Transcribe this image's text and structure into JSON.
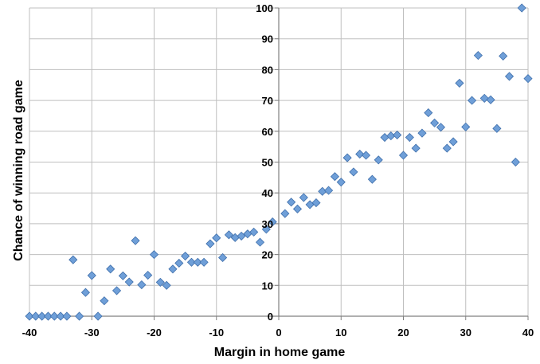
{
  "chart_data": {
    "type": "scatter",
    "title": "",
    "xlabel": "Margin in home game",
    "ylabel": "Chance of winning road game",
    "xlim": [
      -40,
      40
    ],
    "ylim": [
      0,
      100
    ],
    "xticks": [
      -40,
      -30,
      -20,
      -10,
      0,
      10,
      20,
      30,
      40
    ],
    "yticks": [
      0,
      10,
      20,
      30,
      40,
      50,
      60,
      70,
      80,
      90,
      100
    ],
    "grid": true,
    "y_axis_position": "x=0",
    "marker": "diamond",
    "colors": {
      "marker_fill": "#6f9fd8",
      "marker_stroke": "#3f6fab",
      "grid": "#bfbfbf",
      "axis": "#808080"
    },
    "series": [
      {
        "points": [
          [
            -40,
            0
          ],
          [
            -39,
            0
          ],
          [
            -38,
            0
          ],
          [
            -37,
            0
          ],
          [
            -36,
            0
          ],
          [
            -35,
            0
          ],
          [
            -34,
            0
          ],
          [
            -33,
            18.3
          ],
          [
            -32,
            0
          ],
          [
            -31,
            7.7
          ],
          [
            -30,
            13.2
          ],
          [
            -29,
            0
          ],
          [
            -28,
            5
          ],
          [
            -27,
            15.3
          ],
          [
            -26,
            8.3
          ],
          [
            -25,
            13.1
          ],
          [
            -24,
            11.1
          ],
          [
            -23,
            24.5
          ],
          [
            -22,
            10.2
          ],
          [
            -21,
            13.3
          ],
          [
            -20,
            20
          ],
          [
            -19,
            11
          ],
          [
            -18,
            10
          ],
          [
            -17,
            15.3
          ],
          [
            -16,
            17.2
          ],
          [
            -15,
            19.5
          ],
          [
            -14,
            17.5
          ],
          [
            -13,
            17.5
          ],
          [
            -12,
            17.5
          ],
          [
            -11,
            23.5
          ],
          [
            -10,
            25.4
          ],
          [
            -9,
            19
          ],
          [
            -8,
            26.4
          ],
          [
            -7,
            25.5
          ],
          [
            -6,
            26
          ],
          [
            -5,
            26.7
          ],
          [
            -4,
            27.3
          ],
          [
            -3,
            24
          ],
          [
            -2,
            28.2
          ],
          [
            -1,
            30.6
          ],
          [
            1,
            33.3
          ],
          [
            2,
            37
          ],
          [
            3,
            34.8
          ],
          [
            4,
            38.5
          ],
          [
            5,
            36.2
          ],
          [
            6,
            36.8
          ],
          [
            7,
            40.5
          ],
          [
            8,
            40.8
          ],
          [
            9,
            45.3
          ],
          [
            10,
            43.5
          ],
          [
            11,
            51.4
          ],
          [
            12,
            46.8
          ],
          [
            13,
            52.6
          ],
          [
            14,
            52.2
          ],
          [
            15,
            44.4
          ],
          [
            16,
            50.7
          ],
          [
            17,
            58
          ],
          [
            18,
            58.5
          ],
          [
            19,
            58.8
          ],
          [
            20,
            52.2
          ],
          [
            21,
            58
          ],
          [
            22,
            54.5
          ],
          [
            23,
            59.4
          ],
          [
            24,
            66
          ],
          [
            25,
            62.7
          ],
          [
            26,
            61.3
          ],
          [
            27,
            54.5
          ],
          [
            28,
            56.6
          ],
          [
            29,
            75.6
          ],
          [
            30,
            61.4
          ],
          [
            31,
            70
          ],
          [
            32,
            84.6
          ],
          [
            33,
            70.7
          ],
          [
            34,
            70.2
          ],
          [
            35,
            60.9
          ],
          [
            36,
            84.4
          ],
          [
            37,
            77.8
          ],
          [
            38,
            50
          ],
          [
            39,
            100
          ],
          [
            40,
            77.1
          ]
        ]
      }
    ]
  }
}
